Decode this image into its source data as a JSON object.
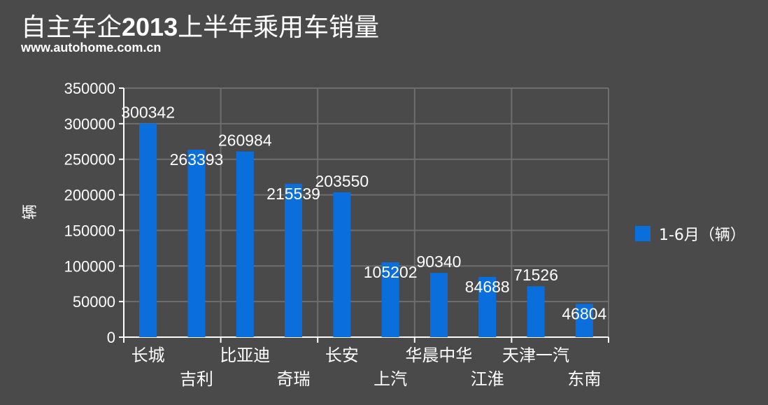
{
  "title_prefix": "自主车企",
  "title_year": "2013",
  "title_suffix": "上半年乘用车销量",
  "source": "www.autohome.com.cn",
  "chart_data": {
    "type": "bar",
    "categories": [
      "长城",
      "吉利",
      "比亚迪",
      "奇瑞",
      "长安",
      "上汽",
      "华晨中华",
      "江淮",
      "天津一汽",
      "东南"
    ],
    "series": [
      {
        "name": "1-6月（辆）",
        "values": [
          300342,
          263393,
          260984,
          215539,
          203550,
          105202,
          90340,
          84688,
          71526,
          46804
        ],
        "color": "#0a6fdc"
      }
    ],
    "ylabel": "辆",
    "xlabel": "",
    "ylim": [
      0,
      350000
    ],
    "yticks": [
      0,
      50000,
      100000,
      150000,
      200000,
      250000,
      300000,
      350000
    ],
    "grid": true,
    "legend_position": "right"
  }
}
